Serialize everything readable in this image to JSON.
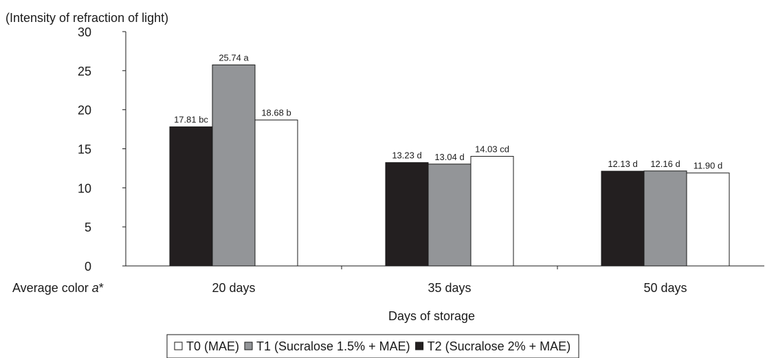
{
  "chart_data": {
    "type": "bar",
    "title": "",
    "ylabel": "(Intensity of refraction of light)",
    "xlabel": "Days of storage",
    "row_label_prefix": "Average color ",
    "row_label_italic": "a",
    "row_label_suffix": "*",
    "ylim": [
      0,
      30
    ],
    "yticks": [
      0,
      5,
      10,
      15,
      20,
      25,
      30
    ],
    "categories": [
      "20 days",
      "35 days",
      "50 days"
    ],
    "series": [
      {
        "name": "T2 (Sucralose 2% + MAE)",
        "color": "#231f20",
        "values": [
          17.81,
          13.23,
          12.13
        ],
        "labels": [
          "17.81 bc",
          "13.23 d",
          "12.13 d"
        ]
      },
      {
        "name": "T1 (Sucralose 1.5% + MAE)",
        "color": "#939598",
        "values": [
          25.74,
          13.04,
          12.16
        ],
        "labels": [
          "25.74 a",
          "13.04 d",
          "12.16 d"
        ]
      },
      {
        "name": "T0 (MAE)",
        "color": "#ffffff",
        "values": [
          18.68,
          14.03,
          11.9
        ],
        "labels": [
          "18.68 b",
          "14.03 cd",
          "11.90 d"
        ]
      }
    ],
    "legend": {
      "placement": "bottom",
      "order": [
        2,
        1,
        0
      ]
    },
    "grid": false
  }
}
